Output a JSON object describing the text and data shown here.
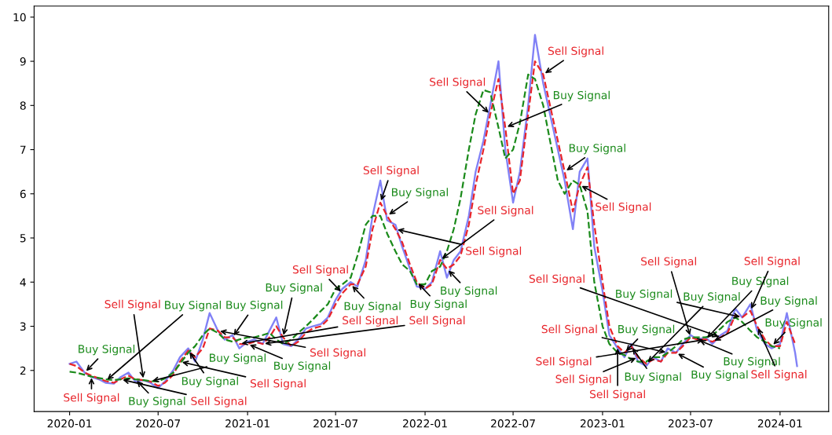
{
  "chart_data": {
    "type": "line",
    "x": [
      "2020-01-01",
      "2020-01-15",
      "2020-02-01",
      "2020-02-15",
      "2020-03-01",
      "2020-03-15",
      "2020-04-01",
      "2020-04-15",
      "2020-05-01",
      "2020-05-15",
      "2020-06-01",
      "2020-06-15",
      "2020-07-01",
      "2020-07-15",
      "2020-08-01",
      "2020-08-15",
      "2020-09-01",
      "2020-09-15",
      "2020-10-01",
      "2020-10-15",
      "2020-11-01",
      "2020-11-15",
      "2020-12-01",
      "2020-12-15",
      "2021-01-01",
      "2021-01-15",
      "2021-02-01",
      "2021-02-15",
      "2021-03-01",
      "2021-03-15",
      "2021-04-01",
      "2021-04-15",
      "2021-05-01",
      "2021-05-15",
      "2021-06-01",
      "2021-06-15",
      "2021-07-01",
      "2021-07-15",
      "2021-08-01",
      "2021-08-15",
      "2021-09-01",
      "2021-09-15",
      "2021-10-01",
      "2021-10-15",
      "2021-11-01",
      "2021-11-15",
      "2021-12-01",
      "2021-12-15",
      "2022-01-01",
      "2022-01-15",
      "2022-02-01",
      "2022-02-15",
      "2022-03-01",
      "2022-03-15",
      "2022-04-01",
      "2022-04-15",
      "2022-05-01",
      "2022-05-15",
      "2022-06-01",
      "2022-06-15",
      "2022-07-01",
      "2022-07-15",
      "2022-08-01",
      "2022-08-15",
      "2022-09-01",
      "2022-09-15",
      "2022-10-01",
      "2022-10-15",
      "2022-11-01",
      "2022-11-15",
      "2022-12-01",
      "2022-12-15",
      "2023-01-01",
      "2023-01-15",
      "2023-02-01",
      "2023-02-15",
      "2023-03-01",
      "2023-03-15",
      "2023-04-01",
      "2023-04-15",
      "2023-05-01",
      "2023-05-15",
      "2023-06-01",
      "2023-06-15",
      "2023-07-01",
      "2023-07-15",
      "2023-08-01",
      "2023-08-15",
      "2023-09-01",
      "2023-09-15",
      "2023-10-01",
      "2023-10-15",
      "2023-11-01",
      "2023-11-15",
      "2023-12-01",
      "2023-12-15",
      "2024-01-01",
      "2024-01-15",
      "2024-02-01",
      "2024-02-05"
    ],
    "series": [
      {
        "color": "#6b6bf5",
        "line_style": "solid",
        "values": [
          2.15,
          2.2,
          1.95,
          1.85,
          1.8,
          1.72,
          1.7,
          1.85,
          1.95,
          1.75,
          1.78,
          1.72,
          1.6,
          1.75,
          2.0,
          2.3,
          2.5,
          2.2,
          2.7,
          3.3,
          2.9,
          2.7,
          2.8,
          2.5,
          2.65,
          2.7,
          2.6,
          2.9,
          3.2,
          2.6,
          2.55,
          2.7,
          2.95,
          3.0,
          3.05,
          3.2,
          3.6,
          3.85,
          4.0,
          3.9,
          4.5,
          5.5,
          6.3,
          5.4,
          5.3,
          4.8,
          4.3,
          3.9,
          3.85,
          4.0,
          4.7,
          4.1,
          4.5,
          4.7,
          5.5,
          6.5,
          7.2,
          8.0,
          9.0,
          7.0,
          5.8,
          6.5,
          8.0,
          9.6,
          8.5,
          7.8,
          7.0,
          6.3,
          5.2,
          6.5,
          6.8,
          4.8,
          3.8,
          2.8,
          2.5,
          2.3,
          2.6,
          2.2,
          2.1,
          2.3,
          2.2,
          2.5,
          2.4,
          2.6,
          2.8,
          2.7,
          2.75,
          2.6,
          2.8,
          2.9,
          3.4,
          3.2,
          3.5,
          2.9,
          2.6,
          2.5,
          2.6,
          3.3,
          2.4,
          2.1
        ]
      },
      {
        "color": "#e8242a",
        "line_style": "dashed",
        "values": [
          2.15,
          2.1,
          1.95,
          1.88,
          1.82,
          1.76,
          1.72,
          1.8,
          1.88,
          1.8,
          1.78,
          1.75,
          1.65,
          1.72,
          1.9,
          2.2,
          2.45,
          2.3,
          2.5,
          2.95,
          2.9,
          2.75,
          2.75,
          2.6,
          2.6,
          2.65,
          2.6,
          2.75,
          3.0,
          2.75,
          2.55,
          2.65,
          2.85,
          2.95,
          3.0,
          3.15,
          3.5,
          3.75,
          3.95,
          3.95,
          4.35,
          5.2,
          5.8,
          5.5,
          5.2,
          4.9,
          4.4,
          4.0,
          3.85,
          3.95,
          4.5,
          4.3,
          4.4,
          4.6,
          5.3,
          6.2,
          7.0,
          7.8,
          8.6,
          7.5,
          6.0,
          6.3,
          7.8,
          9.0,
          8.7,
          8.0,
          7.2,
          6.5,
          5.6,
          6.2,
          6.6,
          5.3,
          4.0,
          3.0,
          2.55,
          2.4,
          2.55,
          2.3,
          2.15,
          2.25,
          2.2,
          2.4,
          2.4,
          2.55,
          2.75,
          2.7,
          2.7,
          2.65,
          2.75,
          2.85,
          3.25,
          3.2,
          3.35,
          3.0,
          2.7,
          2.55,
          2.55,
          3.1,
          2.6,
          null
        ]
      },
      {
        "color": "#1a8a1a",
        "line_style": "dashed",
        "values": [
          1.97,
          1.95,
          1.9,
          1.86,
          1.83,
          1.8,
          1.78,
          1.8,
          1.82,
          1.8,
          1.78,
          1.76,
          1.75,
          1.82,
          1.95,
          2.15,
          2.4,
          2.55,
          2.8,
          2.95,
          2.85,
          2.7,
          2.65,
          2.7,
          2.75,
          2.75,
          2.8,
          2.85,
          2.7,
          2.6,
          2.7,
          2.85,
          3.0,
          3.15,
          3.35,
          3.5,
          3.85,
          3.95,
          4.1,
          4.6,
          5.3,
          5.5,
          5.5,
          5.1,
          4.7,
          4.4,
          4.25,
          3.95,
          3.95,
          4.25,
          4.35,
          4.7,
          5.2,
          5.9,
          7.0,
          7.8,
          8.35,
          8.3,
          7.5,
          6.8,
          7.0,
          7.6,
          8.7,
          8.6,
          8.0,
          7.2,
          6.3,
          6.0,
          6.3,
          6.2,
          5.6,
          4.0,
          3.0,
          2.6,
          2.4,
          2.35,
          2.25,
          2.2,
          2.2,
          2.3,
          2.3,
          2.4,
          2.55,
          2.7,
          2.75,
          2.75,
          2.75,
          2.8,
          2.95,
          3.1,
          3.2,
          3.1,
          2.9,
          2.75,
          2.65,
          2.55,
          2.5,
          null,
          null,
          null
        ]
      }
    ],
    "xlim": [
      "2019-10-20",
      "2024-04-10"
    ],
    "xticks": [
      "2020-01",
      "2020-07",
      "2021-01",
      "2021-07",
      "2022-01",
      "2022-07",
      "2023-01",
      "2023-07",
      "2024-01"
    ],
    "ylim": [
      1.07,
      10.25
    ],
    "yticks": [
      2,
      3,
      4,
      5,
      6,
      7,
      8,
      9,
      10
    ],
    "grid": false,
    "annotations": [
      {
        "text": "Buy Signal",
        "x": "2020-02-01",
        "y": 1.95
      },
      {
        "text": "Buy Signal",
        "x": "2020-03-15",
        "y": 1.76
      },
      {
        "text": "Buy Signal",
        "x": "2020-05-15",
        "y": 1.8
      },
      {
        "text": "Buy Signal",
        "x": "2020-06-15",
        "y": 1.75
      },
      {
        "text": "Buy Signal",
        "x": "2020-09-01",
        "y": 2.45
      },
      {
        "text": "Buy Signal",
        "x": "2020-12-01",
        "y": 2.75
      },
      {
        "text": "Buy Signal",
        "x": "2021-01-01",
        "y": 2.6
      },
      {
        "text": "Buy Signal",
        "x": "2021-03-15",
        "y": 2.75
      },
      {
        "text": "Buy Signal",
        "x": "2021-08-01",
        "y": 3.95
      },
      {
        "text": "Buy Signal",
        "x": "2021-10-15",
        "y": 5.5
      },
      {
        "text": "Buy Signal",
        "x": "2021-12-15",
        "y": 4.0
      },
      {
        "text": "Buy Signal",
        "x": "2022-02-15",
        "y": 4.3
      },
      {
        "text": "Buy Signal",
        "x": "2022-06-15",
        "y": 7.5
      },
      {
        "text": "Buy Signal",
        "x": "2022-10-15",
        "y": 6.5
      },
      {
        "text": "Buy Signal",
        "x": "2023-02-15",
        "y": 2.4
      },
      {
        "text": "Buy Signal",
        "x": "2023-03-01",
        "y": 2.55
      },
      {
        "text": "Buy Signal",
        "x": "2023-04-01",
        "y": 2.15
      },
      {
        "text": "Buy Signal",
        "x": "2023-06-01",
        "y": 2.4
      },
      {
        "text": "Buy Signal",
        "x": "2023-07-15",
        "y": 2.7
      },
      {
        "text": "Buy Signal",
        "x": "2023-08-01",
        "y": 2.7
      },
      {
        "text": "Buy Signal",
        "x": "2023-08-15",
        "y": 2.65
      },
      {
        "text": "Buy Signal",
        "x": "2023-10-15",
        "y": 3.2
      },
      {
        "text": "Buy Signal",
        "x": "2023-12-15",
        "y": 2.55
      },
      {
        "text": "Sell Signal",
        "x": "2020-02-15",
        "y": 1.88
      },
      {
        "text": "Sell Signal",
        "x": "2020-04-15",
        "y": 1.8
      },
      {
        "text": "Sell Signal",
        "x": "2020-06-01",
        "y": 1.78
      },
      {
        "text": "Sell Signal",
        "x": "2020-08-15",
        "y": 2.2
      },
      {
        "text": "Sell Signal",
        "x": "2020-11-01",
        "y": 2.9
      },
      {
        "text": "Sell Signal",
        "x": "2020-12-15",
        "y": 2.6
      },
      {
        "text": "Sell Signal",
        "x": "2021-02-01",
        "y": 2.6
      },
      {
        "text": "Sell Signal",
        "x": "2021-07-15",
        "y": 3.75
      },
      {
        "text": "Sell Signal",
        "x": "2021-10-01",
        "y": 5.8
      },
      {
        "text": "Sell Signal",
        "x": "2021-11-01",
        "y": 5.2
      },
      {
        "text": "Sell Signal",
        "x": "2022-02-01",
        "y": 4.5
      },
      {
        "text": "Sell Signal",
        "x": "2022-05-15",
        "y": 7.8
      },
      {
        "text": "Sell Signal",
        "x": "2022-09-01",
        "y": 8.7
      },
      {
        "text": "Sell Signal",
        "x": "2022-11-15",
        "y": 6.2
      },
      {
        "text": "Sell Signal",
        "x": "2023-02-01",
        "y": 2.55
      },
      {
        "text": "Sell Signal",
        "x": "2023-03-15",
        "y": 2.3
      },
      {
        "text": "Sell Signal",
        "x": "2023-05-15",
        "y": 2.4
      },
      {
        "text": "Sell Signal",
        "x": "2023-07-01",
        "y": 2.75
      },
      {
        "text": "Sell Signal",
        "x": "2023-08-01",
        "y": 2.7
      },
      {
        "text": "Sell Signal",
        "x": "2023-09-01",
        "y": 2.75
      },
      {
        "text": "Sell Signal",
        "x": "2023-11-01",
        "y": 3.35
      },
      {
        "text": "Sell Signal",
        "x": "2023-11-15",
        "y": 3.0
      }
    ]
  }
}
